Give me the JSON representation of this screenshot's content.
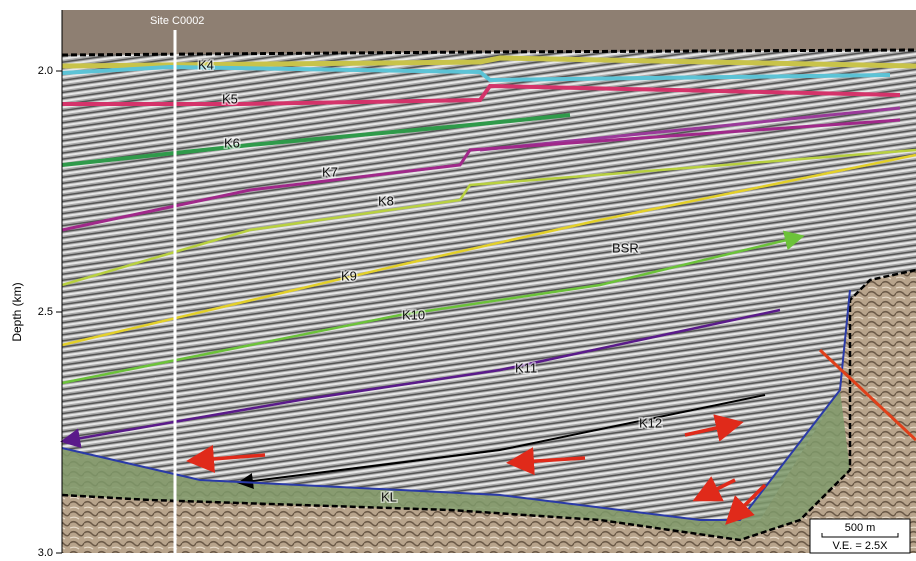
{
  "figure": {
    "site_label": "Site C0002",
    "axis": {
      "label": "Depth (km)",
      "ticks": [
        "2.0",
        "2.5",
        "3.0"
      ]
    },
    "horizons": [
      "K4",
      "K5",
      "K6",
      "K7",
      "K8",
      "K9",
      "K10",
      "K11",
      "K12",
      "KL"
    ],
    "bsr_label": "BSR",
    "scale_bar": {
      "length": "500 m",
      "exaggeration": "V.E. = 2.5X"
    }
  }
}
